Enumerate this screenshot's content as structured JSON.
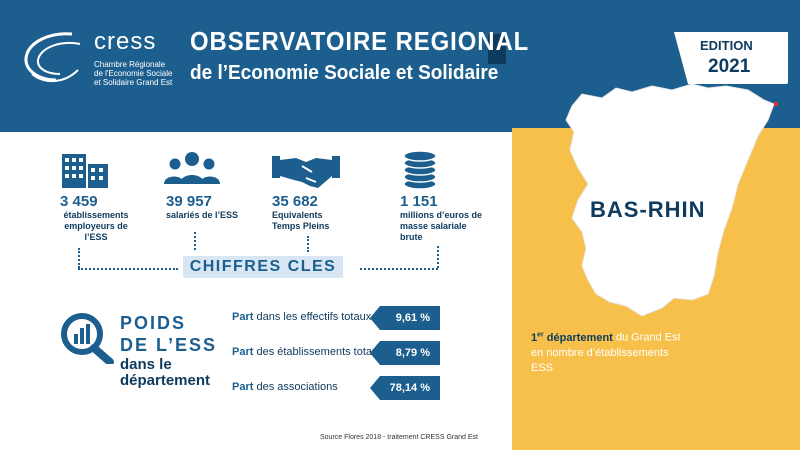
{
  "logo": {
    "word": "cress",
    "subtitle_lines": [
      "Chambre Régionale",
      "de l'Economie Sociale",
      "et Solidaire Grand Est"
    ]
  },
  "header": {
    "title_line1": "OBSERVATOIRE REGIONAL",
    "title_line2": "de l’Economie Sociale et Solidaire"
  },
  "edition": {
    "label": "EDITION",
    "year": "2021"
  },
  "key_figures": [
    {
      "icon": "building-icon",
      "value": "3 459",
      "label": "établissements employeurs de l’ESS"
    },
    {
      "icon": "people-icon",
      "value": "39 957",
      "label": "salariés de l’ESS"
    },
    {
      "icon": "handshake-icon",
      "value": "35 682",
      "label": "Equivalents Temps Pleins"
    },
    {
      "icon": "coins-icon",
      "value": "1 151",
      "label": "millions d’euros de masse salariale brute"
    }
  ],
  "chiffres_cles": "CHIFFRES CLES",
  "poids": {
    "title_line1": "POIDS",
    "title_line2": "DE L’ESS",
    "subtitle_line1": "dans le",
    "subtitle_line2": "département",
    "rows": [
      {
        "prefix": "Part",
        "label": " dans les effectifs totaux",
        "value": "9,61 %"
      },
      {
        "prefix": "Part",
        "label": " des établissements totaux",
        "value": "8,79 %"
      },
      {
        "prefix": "Part",
        "label": " des associations",
        "value": "78,14 %"
      }
    ]
  },
  "region": {
    "name": "BAS-RHIN",
    "rank_num": "1",
    "rank_sup": "er",
    "rank_bold": " département",
    "rank_rest": " du Grand Est  en nombre d’établissements ESS"
  },
  "source": "Source Flores 2018 - traitement CRESS Grand Est",
  "colors": {
    "primary": "#1c5f8e",
    "dark": "#0e3a5e",
    "accent": "#f7c04a"
  }
}
